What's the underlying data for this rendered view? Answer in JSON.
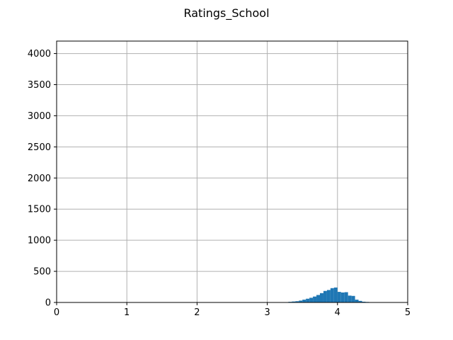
{
  "chart_data": {
    "type": "bar",
    "title": "Ratings_School",
    "xlabel": "",
    "ylabel": "",
    "xlim": [
      0,
      5
    ],
    "ylim": [
      0,
      4200
    ],
    "grid": true,
    "x_ticks": [
      0,
      1,
      2,
      3,
      4,
      5
    ],
    "y_ticks": [
      0,
      500,
      1000,
      1500,
      2000,
      2500,
      3000,
      3500,
      4000
    ],
    "bar_color": "#1f77b4",
    "bin_width": 0.05,
    "bins": [
      {
        "x": 3.25,
        "count": 5
      },
      {
        "x": 3.3,
        "count": 10
      },
      {
        "x": 3.35,
        "count": 15
      },
      {
        "x": 3.4,
        "count": 20
      },
      {
        "x": 3.45,
        "count": 30
      },
      {
        "x": 3.5,
        "count": 45
      },
      {
        "x": 3.55,
        "count": 60
      },
      {
        "x": 3.6,
        "count": 75
      },
      {
        "x": 3.65,
        "count": 95
      },
      {
        "x": 3.7,
        "count": 120
      },
      {
        "x": 3.75,
        "count": 150
      },
      {
        "x": 3.8,
        "count": 185
      },
      {
        "x": 3.85,
        "count": 200
      },
      {
        "x": 3.9,
        "count": 230
      },
      {
        "x": 3.95,
        "count": 240
      },
      {
        "x": 4.0,
        "count": 170
      },
      {
        "x": 4.05,
        "count": 160
      },
      {
        "x": 4.1,
        "count": 165
      },
      {
        "x": 4.15,
        "count": 110
      },
      {
        "x": 4.2,
        "count": 105
      },
      {
        "x": 4.25,
        "count": 45
      },
      {
        "x": 4.3,
        "count": 25
      },
      {
        "x": 4.35,
        "count": 12
      },
      {
        "x": 4.4,
        "count": 8
      },
      {
        "x": 4.45,
        "count": 4
      },
      {
        "x": 4.5,
        "count": 2
      }
    ]
  }
}
